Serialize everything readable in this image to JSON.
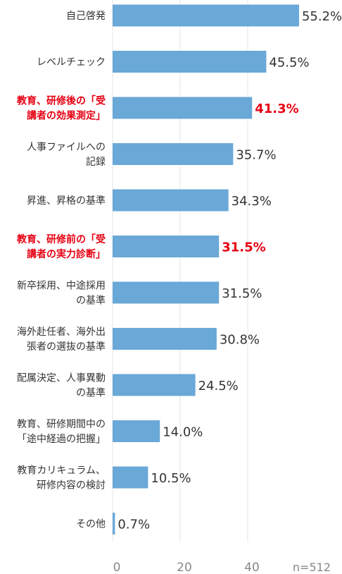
{
  "chart_data": {
    "type": "bar",
    "orientation": "horizontal",
    "n_label": "n=512",
    "x_ticks": [
      0,
      20,
      40
    ],
    "xlim": [
      0,
      60
    ],
    "bar_color": "#6aa8d8",
    "highlight_color": "#e60012",
    "grid": true,
    "categories": [
      {
        "lines": [
          "自己啓発"
        ],
        "value": 55.2,
        "label": "55.2%",
        "highlight": false
      },
      {
        "lines": [
          "レベルチェック"
        ],
        "value": 45.5,
        "label": "45.5%",
        "highlight": false
      },
      {
        "lines": [
          "教育、研修後の「受",
          "講者の効果測定」"
        ],
        "value": 41.3,
        "label": "41.3%",
        "highlight": true
      },
      {
        "lines": [
          "人事ファイルへの",
          "記録"
        ],
        "value": 35.7,
        "label": "35.7%",
        "highlight": false
      },
      {
        "lines": [
          "昇進、昇格の基準"
        ],
        "value": 34.3,
        "label": "34.3%",
        "highlight": false
      },
      {
        "lines": [
          "教育、研修前の「受",
          "講者の実力診断」"
        ],
        "value": 31.5,
        "label": "31.5%",
        "highlight": true
      },
      {
        "lines": [
          "新卒採用、中途採用",
          "の基準"
        ],
        "value": 31.5,
        "label": "31.5%",
        "highlight": false
      },
      {
        "lines": [
          "海外赴任者、海外出",
          "張者の選抜の基準"
        ],
        "value": 30.8,
        "label": "30.8%",
        "highlight": false
      },
      {
        "lines": [
          "配属決定、人事異動",
          "の基準"
        ],
        "value": 24.5,
        "label": "24.5%",
        "highlight": false
      },
      {
        "lines": [
          "教育、研修期間中の",
          "「途中経過の把握」"
        ],
        "value": 14.0,
        "label": "14.0%",
        "highlight": false
      },
      {
        "lines": [
          "教育カリキュラム、",
          "研修内容の検討"
        ],
        "value": 10.5,
        "label": "10.5%",
        "highlight": false
      },
      {
        "lines": [
          "その他"
        ],
        "value": 0.7,
        "label": "0.7%",
        "highlight": false
      }
    ]
  }
}
